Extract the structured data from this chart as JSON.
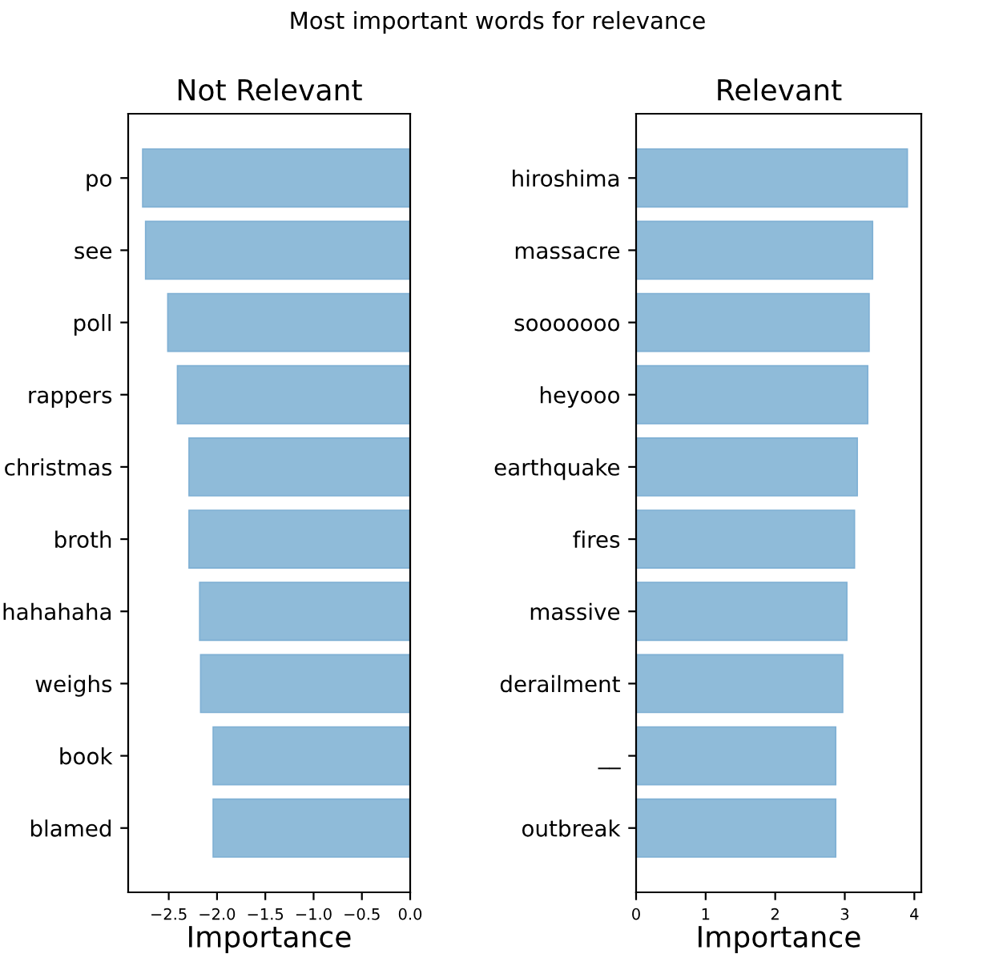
{
  "chart_data": [
    {
      "type": "bar",
      "orientation": "horizontal",
      "title": "Not Relevant",
      "xlabel": "Importance",
      "annotations": [
        "Most important words for relevance"
      ],
      "categories": [
        "po",
        "see",
        "poll",
        "rappers",
        "christmas",
        "broth",
        "hahahaha",
        "weighs",
        "book",
        "blamed"
      ],
      "values": [
        -2.77,
        -2.74,
        -2.51,
        -2.41,
        -2.29,
        -2.29,
        -2.18,
        -2.17,
        -2.04,
        -2.04
      ],
      "color": "#8fbbd9",
      "xlim": [
        -2.92,
        0
      ],
      "xticks": [
        {
          "value": -2.5,
          "label": "−2.5"
        },
        {
          "value": -2.0,
          "label": "−2.0"
        },
        {
          "value": -1.5,
          "label": "−1.5"
        },
        {
          "value": -1.0,
          "label": "−1.0"
        },
        {
          "value": -0.5,
          "label": "−0.5"
        },
        {
          "value": 0,
          "label": "0.0"
        }
      ],
      "grid": false
    },
    {
      "type": "bar",
      "orientation": "horizontal",
      "title": "Relevant",
      "xlabel": "Importance",
      "categories": [
        "hiroshima",
        "massacre",
        "sooooooo",
        "heyooo",
        "earthquake",
        "fires",
        "massive",
        "derailment",
        "__",
        "outbreak"
      ],
      "values": [
        3.9,
        3.4,
        3.35,
        3.33,
        3.18,
        3.14,
        3.03,
        2.97,
        2.87,
        2.87
      ],
      "color": "#8fbbd9",
      "xlim": [
        0,
        4.1
      ],
      "xticks": [
        0,
        1,
        2,
        3,
        4
      ],
      "grid": false
    }
  ]
}
